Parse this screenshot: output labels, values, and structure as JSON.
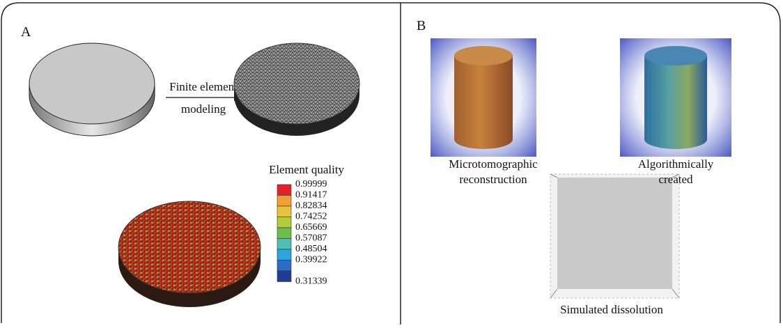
{
  "panel_a": {
    "label": "A",
    "arrow_label": [
      "Finite element",
      "modeling"
    ],
    "legend": {
      "title": "Element quality",
      "entries": [
        {
          "label": "0.99999",
          "color": "#e8202a"
        },
        {
          "label": "0.91417",
          "color": "#f0a032"
        },
        {
          "label": "0.82834",
          "color": "#e8c43a"
        },
        {
          "label": "0.74252",
          "color": "#b4cc3c"
        },
        {
          "label": "0.65669",
          "color": "#6cbf46"
        },
        {
          "label": "0.57087",
          "color": "#4cc0b4"
        },
        {
          "label": "0.48504",
          "color": "#2aa6dc"
        },
        {
          "label": "0.39922",
          "color": "#2a6cc8"
        },
        {
          "label": "0.31339",
          "color": "#203c96"
        }
      ]
    }
  },
  "panel_b": {
    "label": "B",
    "captions": [
      [
        "Microtomographic",
        "reconstruction"
      ],
      [
        "Algorithmically",
        "created"
      ],
      [
        "Simulated dissolution"
      ]
    ]
  }
}
